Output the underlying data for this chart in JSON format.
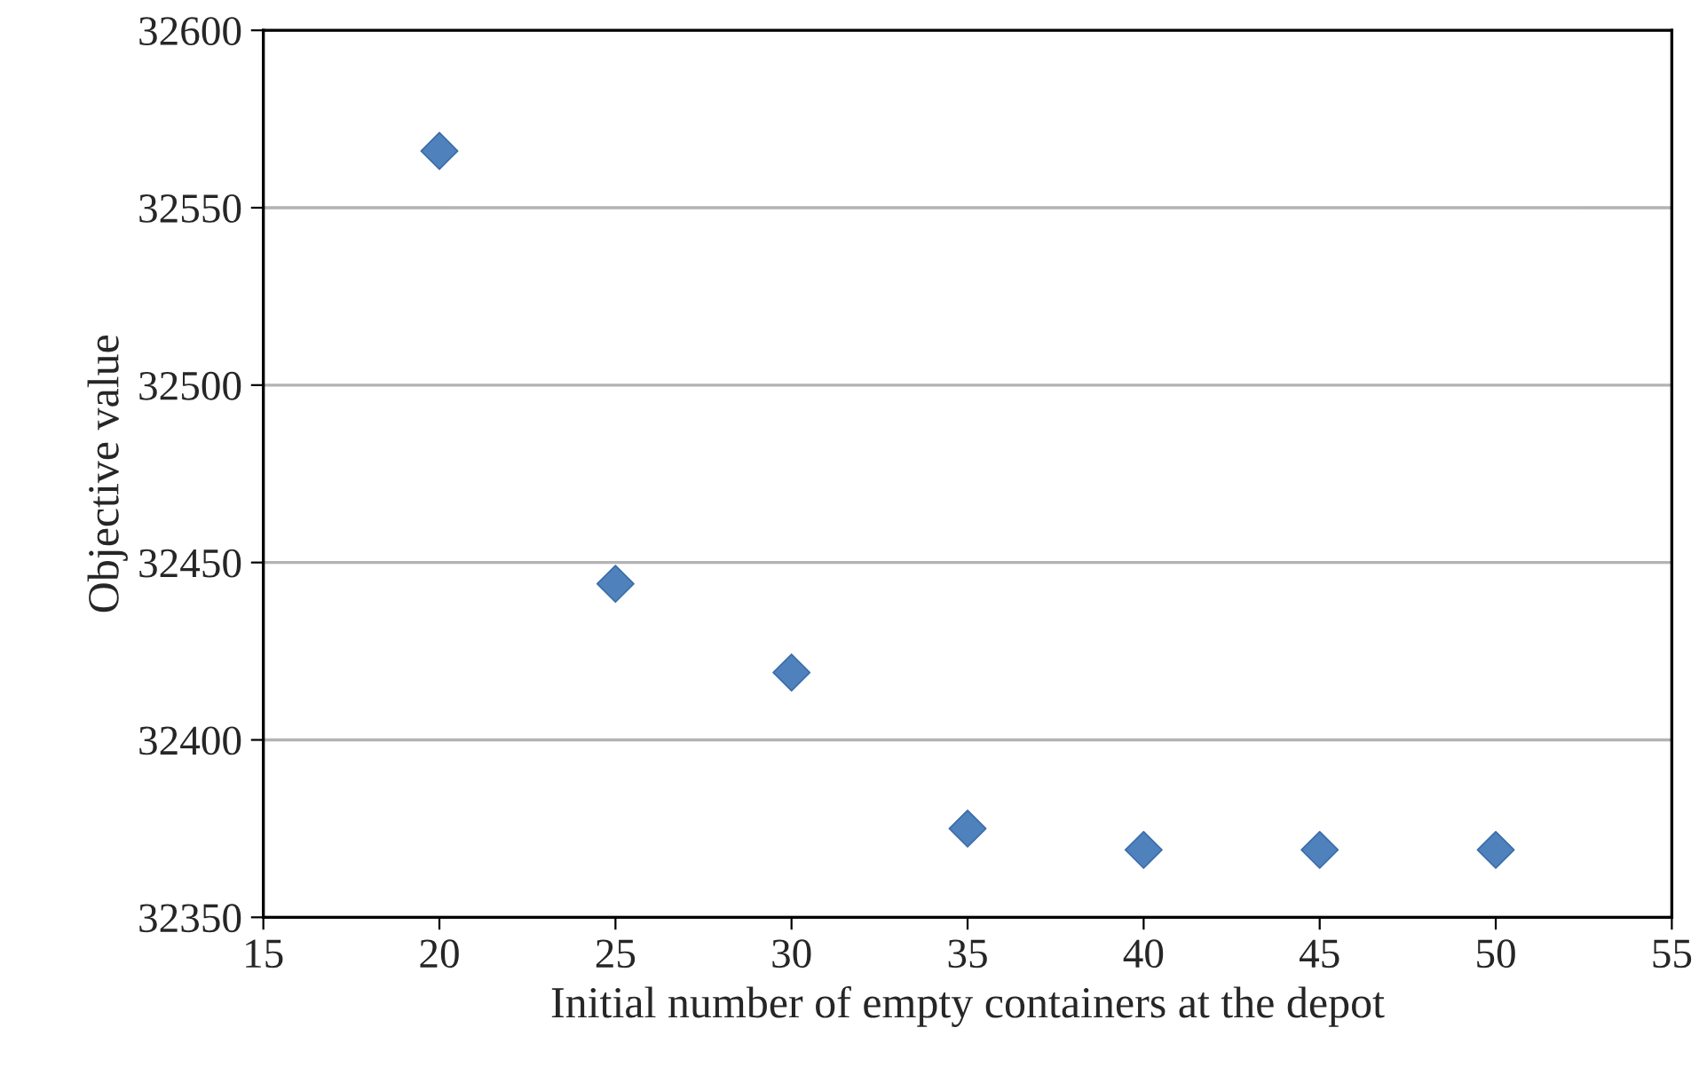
{
  "chart_data": {
    "type": "scatter",
    "xlabel": "Initial number of empty containers at the depot",
    "ylabel": "Objective value",
    "x": [
      20,
      25,
      30,
      35,
      40,
      45,
      50
    ],
    "series": [
      {
        "color": "#4f81bd",
        "values": [
          32566,
          32444,
          32419,
          32375,
          32369,
          32369,
          32369
        ]
      }
    ],
    "xlim": [
      15,
      55
    ],
    "xticks": [
      15,
      20,
      25,
      30,
      35,
      40,
      45,
      50,
      55
    ],
    "ylim": [
      32350,
      32600
    ],
    "yticks": [
      32350,
      32400,
      32450,
      32500,
      32550,
      32600
    ],
    "grid": "y",
    "marker": "diamond"
  }
}
